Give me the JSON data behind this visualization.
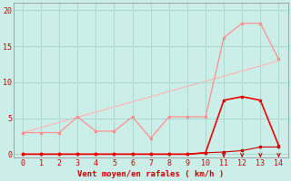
{
  "xlabel": "Vent moyen/en rafales ( km/h )",
  "background_color": "#cceee8",
  "grid_color": "#aad8d2",
  "x_ticks": [
    0,
    1,
    2,
    3,
    4,
    5,
    6,
    7,
    8,
    9,
    10,
    11,
    12,
    13,
    14
  ],
  "ylim": [
    -0.5,
    21
  ],
  "xlim": [
    -0.5,
    14.5
  ],
  "y_ticks": [
    0,
    5,
    10,
    15,
    20
  ],
  "series": [
    {
      "name": "rafales_light",
      "x": [
        0,
        1,
        2,
        3,
        4,
        5,
        6,
        7,
        8,
        9,
        10,
        11,
        12,
        13,
        14
      ],
      "y": [
        3,
        3,
        3,
        5.2,
        3.2,
        3.2,
        5.2,
        2.2,
        5.2,
        5.2,
        5.2,
        16.2,
        18.2,
        18.2,
        13.2
      ],
      "color": "#ff9090",
      "linewidth": 0.9,
      "marker": "s",
      "markersize": 2.0,
      "zorder": 2
    },
    {
      "name": "trend_light",
      "x": [
        0,
        14
      ],
      "y": [
        3.0,
        13.0
      ],
      "color": "#ffb8b8",
      "linewidth": 0.9,
      "marker": null,
      "markersize": 0,
      "zorder": 1
    },
    {
      "name": "moyen_dark",
      "x": [
        0,
        1,
        2,
        3,
        4,
        5,
        6,
        7,
        8,
        9,
        10,
        11,
        12,
        13,
        14
      ],
      "y": [
        0,
        0,
        0,
        0,
        0,
        0,
        0,
        0,
        0,
        0,
        0.2,
        7.5,
        8.0,
        7.5,
        1.2
      ],
      "color": "#ee0000",
      "linewidth": 1.2,
      "marker": "s",
      "markersize": 2.0,
      "zorder": 4
    },
    {
      "name": "baseline_dark",
      "x": [
        0,
        1,
        2,
        3,
        4,
        5,
        6,
        7,
        8,
        9,
        10,
        11,
        12,
        13,
        14
      ],
      "y": [
        0,
        0,
        0,
        0,
        0,
        0,
        0,
        0,
        0,
        0,
        0.2,
        0.3,
        0.5,
        1.0,
        1.0
      ],
      "color": "#cc0000",
      "linewidth": 0.8,
      "marker": "s",
      "markersize": 1.8,
      "zorder": 3
    }
  ],
  "arrows": [
    11,
    12,
    13,
    14
  ],
  "arrow_color": "#cc0000",
  "spine_color": "#999999",
  "tick_color": "#cc0000",
  "xlabel_color": "#cc0000"
}
